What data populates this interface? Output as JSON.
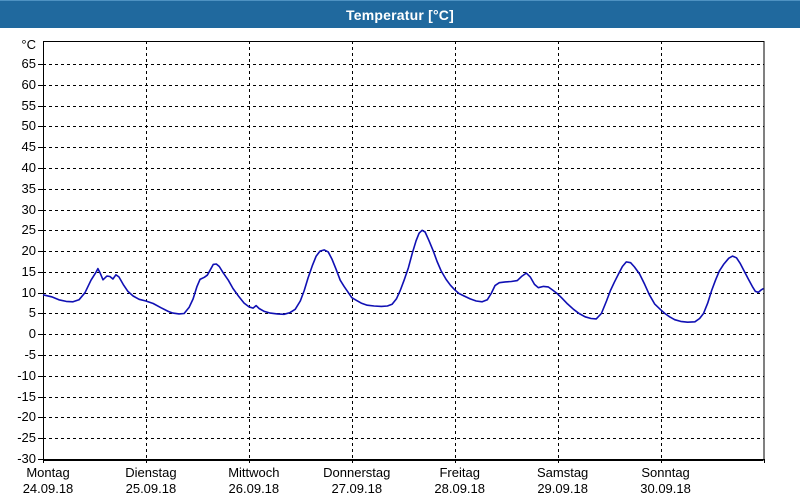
{
  "window": {
    "title": "Temperatur [°C]"
  },
  "colors": {
    "titlebar": "#20699e",
    "frame": "#20699e",
    "line": "#1010b4",
    "grid": "#000000",
    "axis": "#000000",
    "text": "#000000",
    "background": "#ffffff"
  },
  "chart_data": {
    "type": "line",
    "title": "Temperatur [°C]",
    "ylabel_unit": "°C",
    "grid": "dashed",
    "legend": "none",
    "ylim": [
      -30,
      70.5
    ],
    "y_ticks": [
      65,
      60,
      55,
      50,
      45,
      40,
      35,
      30,
      25,
      20,
      15,
      10,
      5,
      0,
      -5,
      -10,
      -15,
      -20,
      -25,
      -30
    ],
    "x_range_hours": [
      0,
      168
    ],
    "x_days": [
      {
        "name": "Montag",
        "date": "24.09.18"
      },
      {
        "name": "Dienstag",
        "date": "25.09.18"
      },
      {
        "name": "Mittwoch",
        "date": "26.09.18"
      },
      {
        "name": "Donnerstag",
        "date": "27.09.18"
      },
      {
        "name": "Freitag",
        "date": "28.09.18"
      },
      {
        "name": "Samstag",
        "date": "29.09.18"
      },
      {
        "name": "Sonntag",
        "date": "30.09.18"
      }
    ],
    "series": [
      {
        "name": "Temperatur",
        "color": "#1010b4",
        "points": [
          [
            0,
            9.5
          ],
          [
            2,
            9.0
          ],
          [
            3.7,
            8.3
          ],
          [
            5.4,
            7.9
          ],
          [
            7,
            7.8
          ],
          [
            8.4,
            8.3
          ],
          [
            9.8,
            10.0
          ],
          [
            11.2,
            13.0
          ],
          [
            12.4,
            15.0
          ],
          [
            12.8,
            15.8
          ],
          [
            13.3,
            14.8
          ],
          [
            14,
            13.1
          ],
          [
            14.9,
            14.0
          ],
          [
            15.6,
            13.9
          ],
          [
            16.3,
            13.3
          ],
          [
            17,
            14.3
          ],
          [
            17.7,
            13.8
          ],
          [
            18.7,
            12.0
          ],
          [
            19.8,
            10.3
          ],
          [
            21,
            9.2
          ],
          [
            22.4,
            8.4
          ],
          [
            24,
            8.0
          ],
          [
            25.7,
            7.4
          ],
          [
            27.5,
            6.4
          ],
          [
            29.2,
            5.5
          ],
          [
            30.3,
            5.1
          ],
          [
            31.7,
            4.9
          ],
          [
            32.9,
            5.0
          ],
          [
            34.1,
            6.5
          ],
          [
            35,
            8.5
          ],
          [
            35.9,
            11.5
          ],
          [
            36.6,
            13.2
          ],
          [
            37.6,
            13.7
          ],
          [
            38.3,
            14.2
          ],
          [
            39,
            15.5
          ],
          [
            39.7,
            16.8
          ],
          [
            40.4,
            16.9
          ],
          [
            41.1,
            16.3
          ],
          [
            42,
            14.8
          ],
          [
            43.2,
            13.0
          ],
          [
            44.3,
            11.0
          ],
          [
            45.7,
            9.0
          ],
          [
            46.9,
            7.5
          ],
          [
            48,
            6.6
          ],
          [
            49,
            6.3
          ],
          [
            49.7,
            6.9
          ],
          [
            50.4,
            6.2
          ],
          [
            51.6,
            5.5
          ],
          [
            53,
            5.1
          ],
          [
            54.6,
            4.9
          ],
          [
            56.2,
            4.8
          ],
          [
            57.6,
            5.2
          ],
          [
            58.8,
            6.0
          ],
          [
            60,
            8.0
          ],
          [
            60.9,
            10.5
          ],
          [
            61.8,
            13.5
          ],
          [
            62.8,
            16.5
          ],
          [
            63.7,
            18.8
          ],
          [
            64.6,
            20.0
          ],
          [
            65.6,
            20.3
          ],
          [
            66.5,
            19.8
          ],
          [
            67.4,
            18.0
          ],
          [
            68.4,
            15.5
          ],
          [
            69.3,
            13.0
          ],
          [
            70.2,
            11.5
          ],
          [
            71.2,
            10.0
          ],
          [
            72,
            8.8
          ],
          [
            73,
            8.2
          ],
          [
            74.2,
            7.5
          ],
          [
            75.6,
            7.0
          ],
          [
            77.2,
            6.8
          ],
          [
            78.9,
            6.7
          ],
          [
            80.3,
            6.8
          ],
          [
            81.4,
            7.2
          ],
          [
            82.4,
            8.5
          ],
          [
            83.3,
            10.5
          ],
          [
            84.2,
            13.0
          ],
          [
            85.2,
            16.0
          ],
          [
            86.1,
            19.5
          ],
          [
            87,
            22.5
          ],
          [
            87.7,
            24.3
          ],
          [
            88.4,
            25.0
          ],
          [
            89.1,
            24.6
          ],
          [
            90,
            22.5
          ],
          [
            91,
            20.0
          ],
          [
            91.9,
            17.5
          ],
          [
            92.8,
            15.3
          ],
          [
            94,
            13.2
          ],
          [
            95,
            11.8
          ],
          [
            96,
            10.7
          ],
          [
            97,
            9.8
          ],
          [
            98.2,
            9.2
          ],
          [
            99.6,
            8.5
          ],
          [
            101,
            8.0
          ],
          [
            102.4,
            7.8
          ],
          [
            103.6,
            8.3
          ],
          [
            104.5,
            9.8
          ],
          [
            105.4,
            11.7
          ],
          [
            106.4,
            12.4
          ],
          [
            107.8,
            12.6
          ],
          [
            109.2,
            12.7
          ],
          [
            110.6,
            12.9
          ],
          [
            111.7,
            14.0
          ],
          [
            112.7,
            14.7
          ],
          [
            113.6,
            13.8
          ],
          [
            114.6,
            12.0
          ],
          [
            115.5,
            11.2
          ],
          [
            116.7,
            11.5
          ],
          [
            117.8,
            11.4
          ],
          [
            119,
            10.5
          ],
          [
            120,
            9.7
          ],
          [
            121,
            8.7
          ],
          [
            122.3,
            7.3
          ],
          [
            123.7,
            6.0
          ],
          [
            125,
            5.0
          ],
          [
            126.4,
            4.2
          ],
          [
            127.8,
            3.8
          ],
          [
            129,
            3.7
          ],
          [
            130.2,
            5.0
          ],
          [
            131.4,
            8.0
          ],
          [
            132.3,
            10.5
          ],
          [
            133.2,
            12.5
          ],
          [
            134.2,
            14.5
          ],
          [
            135.1,
            16.3
          ],
          [
            136,
            17.4
          ],
          [
            137,
            17.2
          ],
          [
            137.9,
            16.2
          ],
          [
            139.1,
            14.5
          ],
          [
            140.3,
            12.0
          ],
          [
            141.4,
            9.5
          ],
          [
            142.6,
            7.3
          ],
          [
            144,
            5.9
          ],
          [
            145,
            5.0
          ],
          [
            146.1,
            4.2
          ],
          [
            147.3,
            3.5
          ],
          [
            148.7,
            3.1
          ],
          [
            150.3,
            2.9
          ],
          [
            152,
            3.0
          ],
          [
            153.1,
            3.8
          ],
          [
            154,
            5.0
          ],
          [
            155,
            7.5
          ],
          [
            155.9,
            10.5
          ],
          [
            156.8,
            13.0
          ],
          [
            157.7,
            15.2
          ],
          [
            158.7,
            16.8
          ],
          [
            159.9,
            18.3
          ],
          [
            160.8,
            18.8
          ],
          [
            161.7,
            18.4
          ],
          [
            162.6,
            17.0
          ],
          [
            163.6,
            15.0
          ],
          [
            164.5,
            13.2
          ],
          [
            165.4,
            11.5
          ],
          [
            166.1,
            10.3
          ],
          [
            166.8,
            10.1
          ],
          [
            167.5,
            10.7
          ],
          [
            168,
            11.0
          ]
        ]
      }
    ]
  }
}
